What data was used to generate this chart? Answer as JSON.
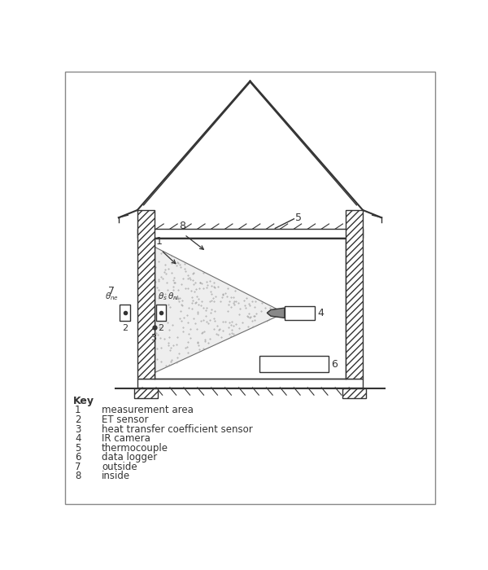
{
  "bg_color": "#ffffff",
  "line_color": "#333333",
  "key_items": [
    [
      "1",
      "measurement area"
    ],
    [
      "2",
      "ET sensor"
    ],
    [
      "3",
      "heat transfer coefficient sensor"
    ],
    [
      "4",
      "IR camera"
    ],
    [
      "5",
      "thermocouple"
    ],
    [
      "6",
      "data logger"
    ],
    [
      "7",
      "outside"
    ],
    [
      "8",
      "inside"
    ]
  ]
}
